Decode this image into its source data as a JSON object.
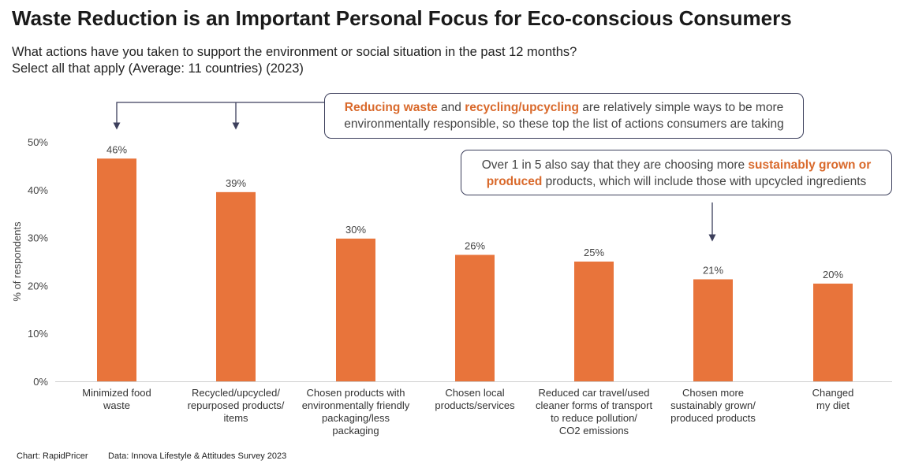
{
  "header": {
    "title": "Waste Reduction is an Important Personal Focus for Eco-conscious Consumers",
    "subtitle_line1": "What actions have you taken to support the environment or social situation in the past 12 months?",
    "subtitle_line2": "Select all that apply (Average: 11 countries) (2023)"
  },
  "callouts": {
    "first": {
      "highlight1": "Reducing waste",
      "text1": " and ",
      "highlight2": "recycling/upcycling",
      "text2": " are relatively simple ways to be more",
      "line2": "environmentally responsible, so these top the list of actions consumers are taking"
    },
    "second": {
      "text1": "Over 1 in 5 also say that they are choosing more ",
      "highlight1": "sustainably grown or",
      "highlight2": "produced",
      "text2": " products, which will include those with upcycled ingredients"
    }
  },
  "footer": {
    "chart_credit": "Chart: RapidPricer",
    "data_credit": "Data: Innova Lifestyle & Attitudes Survey 2023"
  },
  "colors": {
    "bar": "#e8743b",
    "highlight": "#d9692b",
    "callout_border": "#3c3f5c",
    "arrow": "#3c3f5c"
  },
  "chart_data": {
    "type": "bar",
    "title": "",
    "xlabel": "",
    "ylabel": "% of respondents",
    "ylim": [
      0,
      50
    ],
    "yticks": [
      "0%",
      "10%",
      "20%",
      "30%",
      "40%",
      "50%"
    ],
    "grid": false,
    "legend": "none",
    "categories": [
      [
        "Minimized food",
        "waste"
      ],
      [
        "Recycled/upcycled/",
        "repurposed products/",
        "items"
      ],
      [
        "Chosen products with",
        "environmentally friendly",
        "packaging/less",
        "packaging"
      ],
      [
        "Chosen local",
        "products/services"
      ],
      [
        "Reduced car travel/used",
        "cleaner forms of transport",
        "to reduce pollution/",
        "CO2 emissions"
      ],
      [
        "Chosen more",
        "sustainably grown/",
        "produced products"
      ],
      [
        "Changed",
        "my diet"
      ]
    ],
    "values": [
      46.5,
      39.5,
      29.8,
      26.4,
      25.0,
      21.3,
      20.4
    ],
    "data_labels": [
      "46%",
      "39%",
      "30%",
      "26%",
      "25%",
      "21%",
      "20%"
    ]
  }
}
